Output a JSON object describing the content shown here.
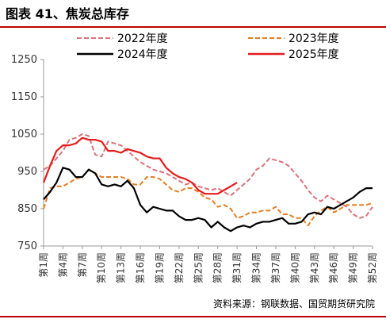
{
  "figure": {
    "title": "图表 41、焦炭总库存",
    "source": "资料来源：钢联数据、国贸期货研究院"
  },
  "colors": {
    "rule": "#c00000",
    "s2022": "#d9737a",
    "s2023": "#e67e22",
    "s2024": "#000000",
    "s2025": "#e41a1c"
  },
  "chart_data": {
    "type": "line",
    "title": "",
    "xlabel": "",
    "ylabel": "",
    "ylim": [
      750,
      1250
    ],
    "yticks": [
      750,
      850,
      950,
      1050,
      1150,
      1250
    ],
    "legend_position": "top",
    "grid": false,
    "categories": [
      "第1周",
      "第2周",
      "第3周",
      "第4周",
      "第5周",
      "第6周",
      "第7周",
      "第8周",
      "第9周",
      "第10周",
      "第11周",
      "第12周",
      "第13周",
      "第14周",
      "第15周",
      "第16周",
      "第17周",
      "第18周",
      "第19周",
      "第20周",
      "第21周",
      "第22周",
      "第23周",
      "第24周",
      "第25周",
      "第26周",
      "第27周",
      "第28周",
      "第29周",
      "第30周",
      "第31周",
      "第32周",
      "第33周",
      "第34周",
      "第35周",
      "第36周",
      "第37周",
      "第38周",
      "第39周",
      "第40周",
      "第41周",
      "第42周",
      "第43周",
      "第44周",
      "第45周",
      "第46周",
      "第47周",
      "第48周",
      "第49周",
      "第50周",
      "第51周",
      "第52周"
    ],
    "tick_labels": [
      "第1周",
      "第4周",
      "第7周",
      "第10周",
      "第13周",
      "第16周",
      "第19周",
      "第22周",
      "第25周",
      "第28周",
      "第31周",
      "第34周",
      "第37周",
      "第40周",
      "第43周",
      "第46周",
      "第49周",
      "第52周"
    ],
    "series": [
      {
        "name": "2022年度",
        "style": "dashed",
        "color": "#d9737a",
        "values": [
          955,
          965,
          985,
          1005,
          1035,
          1040,
          1050,
          1045,
          995,
          990,
          1030,
          1025,
          1020,
          1005,
          990,
          975,
          965,
          955,
          950,
          945,
          935,
          925,
          915,
          920,
          910,
          905,
          900,
          905,
          895,
          885,
          900,
          915,
          930,
          955,
          965,
          985,
          980,
          975,
          965,
          945,
          925,
          900,
          880,
          870,
          885,
          875,
          865,
          855,
          835,
          825,
          830,
          855
        ]
      },
      {
        "name": "2023年度",
        "style": "dashed",
        "color": "#e67e22",
        "values": [
          850,
          905,
          910,
          910,
          920,
          930,
          935,
          955,
          945,
          935,
          935,
          935,
          935,
          930,
          915,
          915,
          935,
          935,
          930,
          915,
          900,
          895,
          905,
          905,
          895,
          880,
          875,
          855,
          860,
          850,
          825,
          830,
          840,
          840,
          845,
          845,
          855,
          835,
          835,
          825,
          825,
          805,
          830,
          845,
          855,
          840,
          850,
          860,
          860,
          860,
          860,
          865
        ]
      },
      {
        "name": "2024年度",
        "style": "solid",
        "color": "#000000",
        "values": [
          875,
          895,
          920,
          960,
          955,
          935,
          935,
          955,
          945,
          915,
          910,
          915,
          910,
          925,
          905,
          860,
          840,
          855,
          850,
          845,
          845,
          830,
          820,
          820,
          825,
          820,
          800,
          815,
          800,
          790,
          800,
          805,
          800,
          810,
          815,
          815,
          820,
          825,
          810,
          810,
          815,
          835,
          840,
          835,
          855,
          850,
          860,
          870,
          880,
          895,
          905,
          905
        ]
      },
      {
        "name": "2025年度",
        "style": "solid",
        "color": "#e41a1c",
        "values": [
          920,
          965,
          1005,
          1020,
          1020,
          1025,
          1040,
          1035,
          1035,
          1030,
          1005,
          1005,
          1000,
          1010,
          1005,
          1000,
          990,
          985,
          985,
          960,
          945,
          935,
          930,
          920,
          900,
          890,
          890,
          890,
          900,
          910,
          920,
          null,
          null,
          null,
          null,
          null,
          null,
          null,
          null,
          null,
          null,
          null,
          null,
          null,
          null,
          null,
          null,
          null,
          null,
          null,
          null,
          null
        ]
      }
    ]
  }
}
